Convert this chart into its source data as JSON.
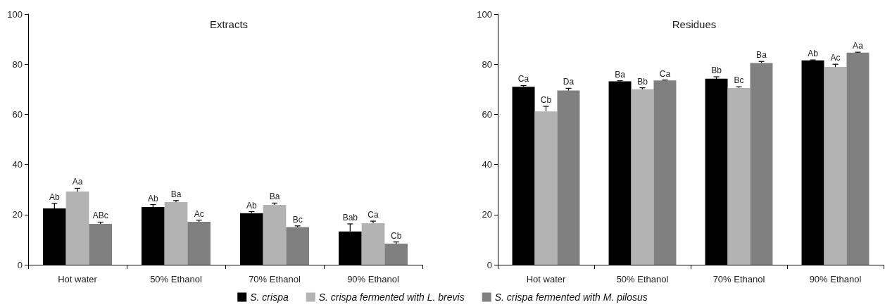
{
  "chart_data": [
    {
      "type": "bar",
      "title": "Extracts",
      "categories": [
        "Hot water",
        "50% Ethanol",
        "70% Ethanol",
        "90% Ethanol"
      ],
      "series": [
        {
          "name": "S. crispa",
          "color": "#000000",
          "values": [
            22.5,
            23,
            20.6,
            13.3
          ],
          "errors": [
            2,
            1,
            0.6,
            3
          ],
          "value_labels": [
            "Ab",
            "Ab",
            "Ab",
            "Bab"
          ]
        },
        {
          "name": "S. crispa fermented with L. brevis",
          "color": "#b3b3b3",
          "values": [
            29.2,
            25,
            23.9,
            16.6
          ],
          "errors": [
            1.3,
            0.6,
            0.7,
            0.8
          ],
          "value_labels": [
            "Aa",
            "Ba",
            "Ba",
            "Ca"
          ]
        },
        {
          "name": "S. crispa fermented with M. pilosus",
          "color": "#808080",
          "values": [
            16.3,
            17.1,
            15,
            8.4
          ],
          "errors": [
            0.7,
            0.7,
            0.5,
            0.7
          ],
          "value_labels": [
            "ABc",
            "Ac",
            "Bc",
            "Cb"
          ]
        }
      ],
      "ylim": [
        0,
        100
      ],
      "yticks": [
        0,
        20,
        40,
        60,
        80,
        100
      ],
      "grid": false,
      "legend": "bottom"
    },
    {
      "type": "bar",
      "title": "Residues",
      "categories": [
        "Hot water",
        "50% Ethanol",
        "70% Ethanol",
        "90% Ethanol"
      ],
      "series": [
        {
          "color": "#000000",
          "values": [
            71,
            73.2,
            74.2,
            81.5
          ],
          "errors": [
            0.5,
            0.2,
            0.8,
            0.2
          ],
          "value_labels": [
            "Ca",
            "Ba",
            "Bb",
            "Ab"
          ]
        },
        {
          "color": "#b3b3b3",
          "values": [
            61.2,
            70,
            70.5,
            78.9
          ],
          "errors": [
            2,
            0.6,
            0.5,
            1.1
          ],
          "value_labels": [
            "Cb",
            "Bb",
            "Bc",
            "Ac"
          ]
        },
        {
          "color": "#808080",
          "values": [
            69.5,
            73.5,
            80.5,
            84.6
          ],
          "errors": [
            0.9,
            0.2,
            0.6,
            0.2
          ],
          "value_labels": [
            "Da",
            "Ca",
            "Ba",
            "Aa"
          ]
        }
      ],
      "ylim": [
        0,
        100
      ],
      "yticks": [
        0,
        20,
        40,
        60,
        80,
        100
      ],
      "grid": false
    }
  ]
}
